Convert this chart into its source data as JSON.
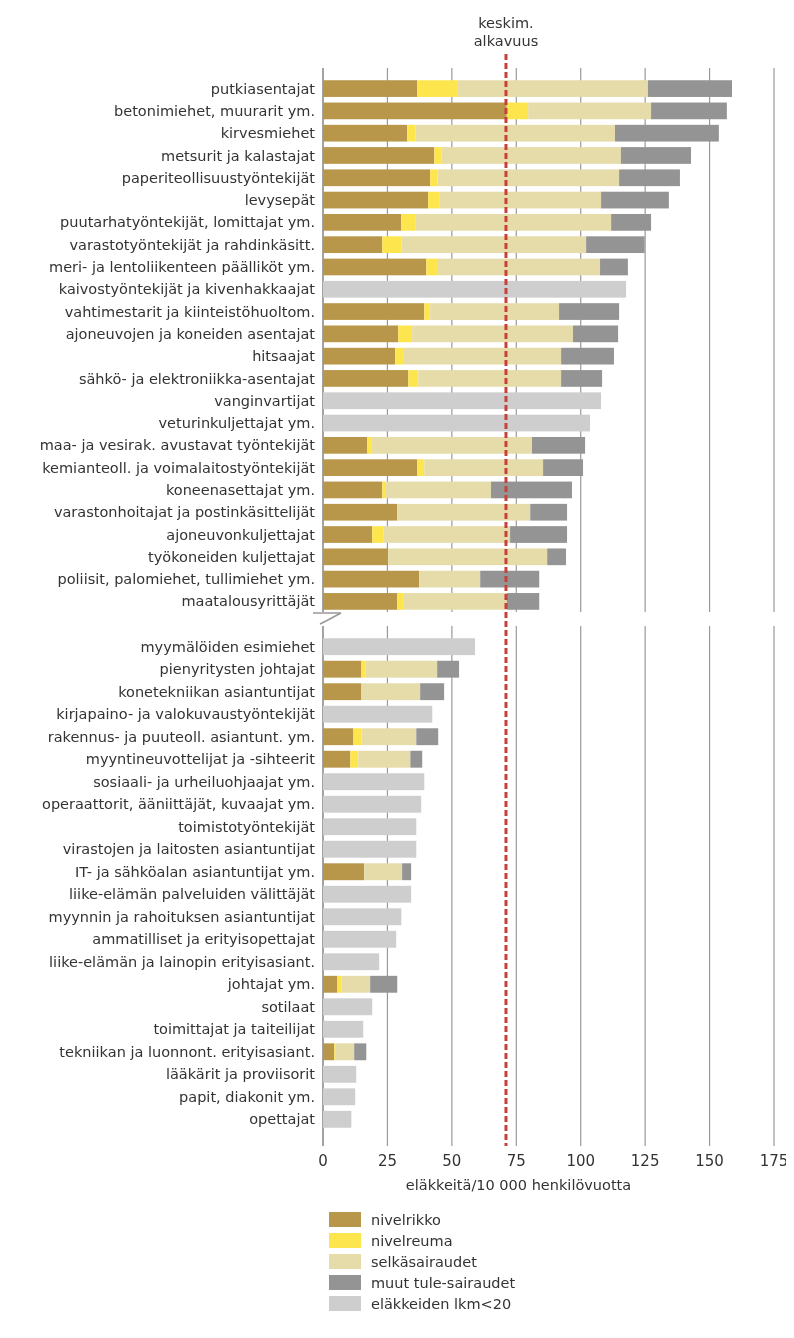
{
  "chart_data": [
    {
      "type": "bar",
      "orientation": "horizontal",
      "stacked": true,
      "categories": [
        "putkiasentajat",
        "betonimiehet, muurarit ym.",
        "kirvesmiehet",
        "metsurit ja kalastajat",
        "paperiteollisuustyöntekijät",
        "levysepät",
        "puutarhatyöntekijät, lomittajat ym.",
        "varastotyöntekijät ja rahdinkäsitt.",
        "meri- ja lentoliikenteen päälliköt ym.",
        "kaivostyöntekijät ja kivenhakkaajat",
        "vahtimestarit ja kiinteistöhuoltom.",
        "ajoneuvojen ja koneiden asentajat",
        "hitsaajat",
        "sähkö- ja elektroniikka-asentajat",
        "vanginvartijat",
        "veturinkuljettajat ym.",
        "maa- ja vesirak. avustavat työntekijät",
        "kemianteoll. ja voimalaitostyöntekijät",
        "koneenasettajat ym.",
        "varastonhoitajat ja postinkäsittelijät",
        "ajoneuvonkuljettajat",
        "työkoneiden kuljettajat",
        "poliisit, palomiehet, tullimiehet ym.",
        "maatalousyrittäjät"
      ],
      "series": [
        {
          "color": "#b8974a",
          "values": [
            36.6,
            71.3,
            32.7,
            43.2,
            41.6,
            40.8,
            30.4,
            23,
            40.1,
            null,
            39.3,
            29.2,
            28,
            33.1,
            null,
            null,
            17.2,
            36.6,
            23,
            28.8,
            19.1,
            25.3,
            37.3,
            28.8
          ]
        },
        {
          "color": "#fde54e",
          "values": [
            15.7,
            8.3,
            3.2,
            2.8,
            2.8,
            4.3,
            5.4,
            7.4,
            4.5,
            null,
            2.3,
            5.4,
            3.1,
            3.9,
            null,
            null,
            1.5,
            2.7,
            1.5,
            null,
            4.3,
            null,
            null,
            2.3
          ]
        },
        {
          "color": "#e5dcaa",
          "values": [
            73.8,
            47.7,
            77.4,
            69.6,
            70.5,
            62.8,
            76,
            71.7,
            62.9,
            null,
            50,
            62.4,
            61.3,
            55.4,
            null,
            null,
            62.4,
            46.1,
            40.7,
            51.6,
            49.2,
            61.7,
            23.7,
            40.2
          ]
        },
        {
          "color": "#949494",
          "values": [
            32.6,
            29.4,
            40.3,
            27.2,
            23.6,
            26.3,
            15.5,
            22.7,
            10.8,
            null,
            23.3,
            17.5,
            20.5,
            15.9,
            null,
            null,
            20.6,
            15.5,
            31.4,
            14.3,
            22.1,
            7.3,
            22.9,
            12.6
          ]
        },
        {
          "color": "#cecece",
          "values": [
            null,
            null,
            null,
            null,
            null,
            null,
            null,
            null,
            null,
            117.6,
            null,
            null,
            null,
            null,
            107.9,
            103.6,
            null,
            null,
            null,
            null,
            null,
            null,
            null,
            null
          ]
        }
      ],
      "xlim": [
        0,
        175
      ],
      "xticks": [
        0,
        25,
        50,
        75,
        100,
        125,
        150,
        175
      ],
      "grid": "x",
      "tick_labels": "y",
      "ref_lines": [
        {
          "axis": "x",
          "value": 71,
          "label": "keskim. alkavuus",
          "color": "#c8403a",
          "line_style": "dashed"
        }
      ]
    },
    {
      "type": "bar",
      "orientation": "horizontal",
      "stacked": true,
      "categories": [
        "myymälöiden esimiehet",
        "pienyritysten johtajat",
        "konetekniikan asiantuntijat",
        "kirjapaino- ja valokuvaustyöntekijät",
        "rakennus- ja puuteoll. asiantunt. ym.",
        "myyntineuvottelijat ja -sihteerit",
        "sosiaali- ja urheiluohjaajat ym.",
        "operaattorit, ääniittäjät, kuvaajat ym.",
        "toimistotyöntekijät",
        "virastojen ja laitosten asiantuntijat",
        "IT- ja sähköalan asiantuntijat ym.",
        "liike-elämän palveluiden välittäjät",
        "myynnin ja rahoituksen asiantuntijat",
        "ammatilliset ja erityisopettajat",
        "liike-elämän ja lainopin erityisasiant.",
        "johtajat ym.",
        "sotilaat",
        "toimittajat ja taiteilijat",
        "tekniikan ja luonnont. erityisasiant.",
        "lääkärit ja proviisorit",
        "papit, diakonit ym.",
        "opettajat"
      ],
      "series": [
        {
          "name": "nivelrikko",
          "color": "#b8974a",
          "values": [
            null,
            14.9,
            14.9,
            null,
            11.8,
            10.6,
            null,
            null,
            null,
            null,
            16,
            null,
            null,
            null,
            null,
            5.6,
            null,
            null,
            4.4,
            null,
            null,
            null
          ]
        },
        {
          "name": "nivelreuma",
          "color": "#fde54e",
          "values": [
            null,
            1.5,
            null,
            null,
            3.1,
            3.1,
            null,
            null,
            null,
            null,
            null,
            null,
            null,
            null,
            null,
            1.5,
            null,
            null,
            0.6,
            null,
            null,
            null
          ]
        },
        {
          "name": "selkäsairaudet",
          "color": "#e5dcaa",
          "values": [
            null,
            27.9,
            22.8,
            null,
            21.3,
            20.2,
            null,
            null,
            null,
            null,
            14.7,
            null,
            null,
            null,
            null,
            11.2,
            null,
            null,
            7.1,
            null,
            null,
            null
          ]
        },
        {
          "name": "muut tule-sairaudet",
          "color": "#949494",
          "values": [
            null,
            8.5,
            9.3,
            null,
            8.5,
            4.6,
            null,
            null,
            null,
            null,
            3.5,
            null,
            null,
            null,
            null,
            10.5,
            null,
            null,
            4.7,
            null,
            null,
            null
          ]
        },
        {
          "name": "eläkkeiden lkm<20",
          "color": "#cecece",
          "values": [
            59,
            null,
            null,
            42.4,
            null,
            null,
            39.3,
            38.1,
            36.2,
            36.2,
            null,
            34.2,
            30.4,
            28.4,
            21.8,
            null,
            19.1,
            15.6,
            null,
            12.9,
            12.5,
            11
          ]
        }
      ],
      "xlim": [
        0,
        175
      ],
      "xticks": [
        0,
        25,
        50,
        75,
        100,
        125,
        150,
        175
      ],
      "grid": "x",
      "xlabel": "eläkkeitä/10 000 henkilövuotta",
      "legend": "bottom",
      "ref_lines": [
        {
          "axis": "x",
          "value": 71,
          "color": "#c8403a",
          "line_style": "dashed"
        }
      ]
    }
  ]
}
